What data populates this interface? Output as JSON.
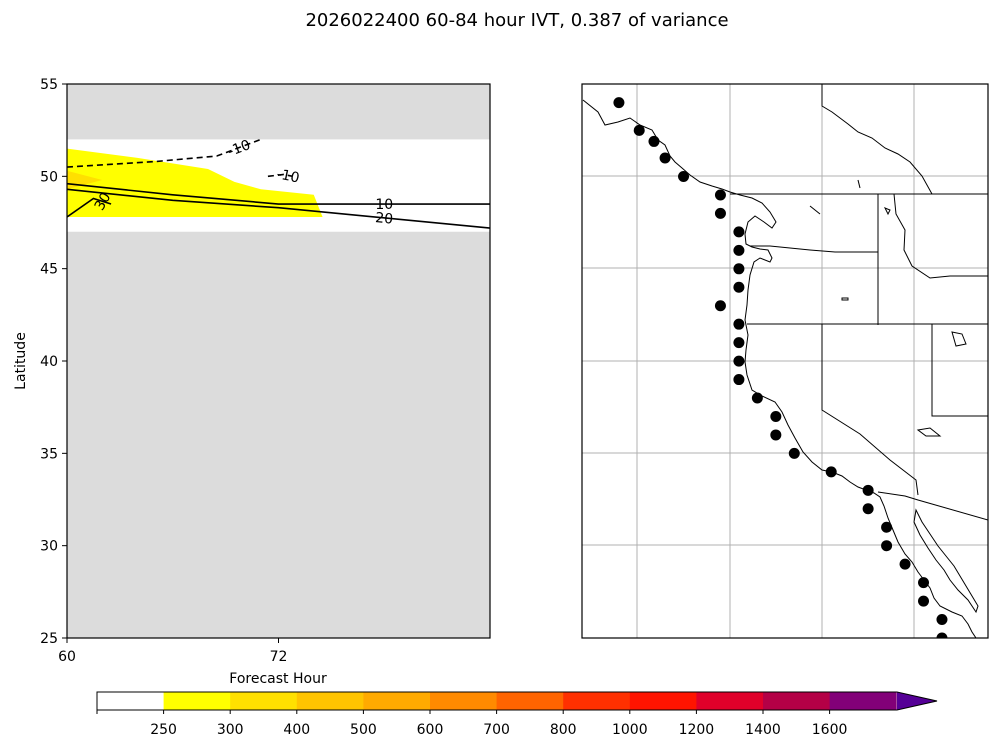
{
  "title": "2026022400 60-84 hour IVT, 0.387 of variance",
  "chart_data": [
    {
      "type": "contour",
      "xlabel": "Forecast Hour",
      "ylabel": "Latitude",
      "xlim": [
        60,
        84
      ],
      "ylim": [
        25,
        55
      ],
      "xticks": [
        60,
        72
      ],
      "yticks": [
        25,
        30,
        35,
        40,
        45,
        50,
        55
      ],
      "masked_regions": [
        {
          "y_from": 52,
          "y_to": 55
        },
        {
          "y_from": 25,
          "y_to": 47
        }
      ],
      "filled_regions": [
        {
          "level": "250-300",
          "color": "#ffff00",
          "points": [
            [
              60,
              51.5
            ],
            [
              64,
              51.0
            ],
            [
              68,
              50.4
            ],
            [
              69.5,
              49.7
            ],
            [
              71,
              49.3
            ],
            [
              74,
              49.0
            ],
            [
              74.5,
              47.8
            ],
            [
              60,
              47.8
            ]
          ]
        },
        {
          "level": "300-400",
          "color": "#ffe000",
          "points": [
            [
              60,
              50.3
            ],
            [
              62,
              49.8
            ],
            [
              60,
              49.3
            ]
          ]
        }
      ],
      "contours": [
        {
          "label": "-10",
          "style": "dashed",
          "points": [
            [
              60,
              50.5
            ],
            [
              65,
              50.8
            ],
            [
              68.5,
              51.1
            ],
            [
              71,
              52.0
            ]
          ]
        },
        {
          "label": "-10",
          "style": "dashed",
          "points": [
            [
              71.4,
              50.0
            ],
            [
              72.3,
              50.1
            ],
            [
              72.8,
              50.0
            ]
          ]
        },
        {
          "label": "10",
          "style": "solid",
          "points": [
            [
              60,
              49.6
            ],
            [
              66,
              49.0
            ],
            [
              72,
              48.5
            ],
            [
              84,
              48.5
            ]
          ]
        },
        {
          "label": "20",
          "style": "solid",
          "points": [
            [
              60,
              49.3
            ],
            [
              66,
              48.7
            ],
            [
              72,
              48.3
            ],
            [
              84,
              47.2
            ]
          ]
        },
        {
          "label": "30",
          "style": "solid",
          "points": [
            [
              60,
              47.8
            ],
            [
              61.5,
              48.8
            ],
            [
              62.5,
              48.5
            ]
          ]
        }
      ]
    },
    {
      "type": "map",
      "region": "U.S. West Coast and Baja California",
      "grid": true,
      "points": [
        [
          -130.5,
          54.0
        ],
        [
          -129.4,
          52.5
        ],
        [
          -128.6,
          51.9
        ],
        [
          -128.0,
          51.0
        ],
        [
          -127.0,
          50.0
        ],
        [
          -125.0,
          49.0
        ],
        [
          -125.0,
          48.0
        ],
        [
          -124.0,
          47.0
        ],
        [
          -124.0,
          46.0
        ],
        [
          -124.0,
          45.0
        ],
        [
          -124.0,
          44.0
        ],
        [
          -125.0,
          43.0
        ],
        [
          -124.0,
          42.0
        ],
        [
          -124.0,
          41.0
        ],
        [
          -124.0,
          40.0
        ],
        [
          -124.0,
          39.0
        ],
        [
          -123.0,
          38.0
        ],
        [
          -122.0,
          37.0
        ],
        [
          -122.0,
          36.0
        ],
        [
          -121.0,
          35.0
        ],
        [
          -119.0,
          34.0
        ],
        [
          -117.0,
          33.0
        ],
        [
          -117.0,
          32.0
        ],
        [
          -116.0,
          31.0
        ],
        [
          -116.0,
          30.0
        ],
        [
          -115.0,
          29.0
        ],
        [
          -114.0,
          28.0
        ],
        [
          -114.0,
          27.0
        ],
        [
          -113.0,
          26.0
        ],
        [
          -113.0,
          25.0
        ]
      ]
    }
  ],
  "colorbar": {
    "levels": [
      "250",
      "300",
      "400",
      "500",
      "600",
      "700",
      "800",
      "1000",
      "1200",
      "1400",
      "1600"
    ],
    "colors": [
      "#ffffff",
      "#ffff00",
      "#ffe000",
      "#ffc400",
      "#ffaa00",
      "#ff8a00",
      "#ff6400",
      "#ff3000",
      "#ff1400",
      "#e0002a",
      "#b40046",
      "#820078",
      "#550096"
    ]
  }
}
